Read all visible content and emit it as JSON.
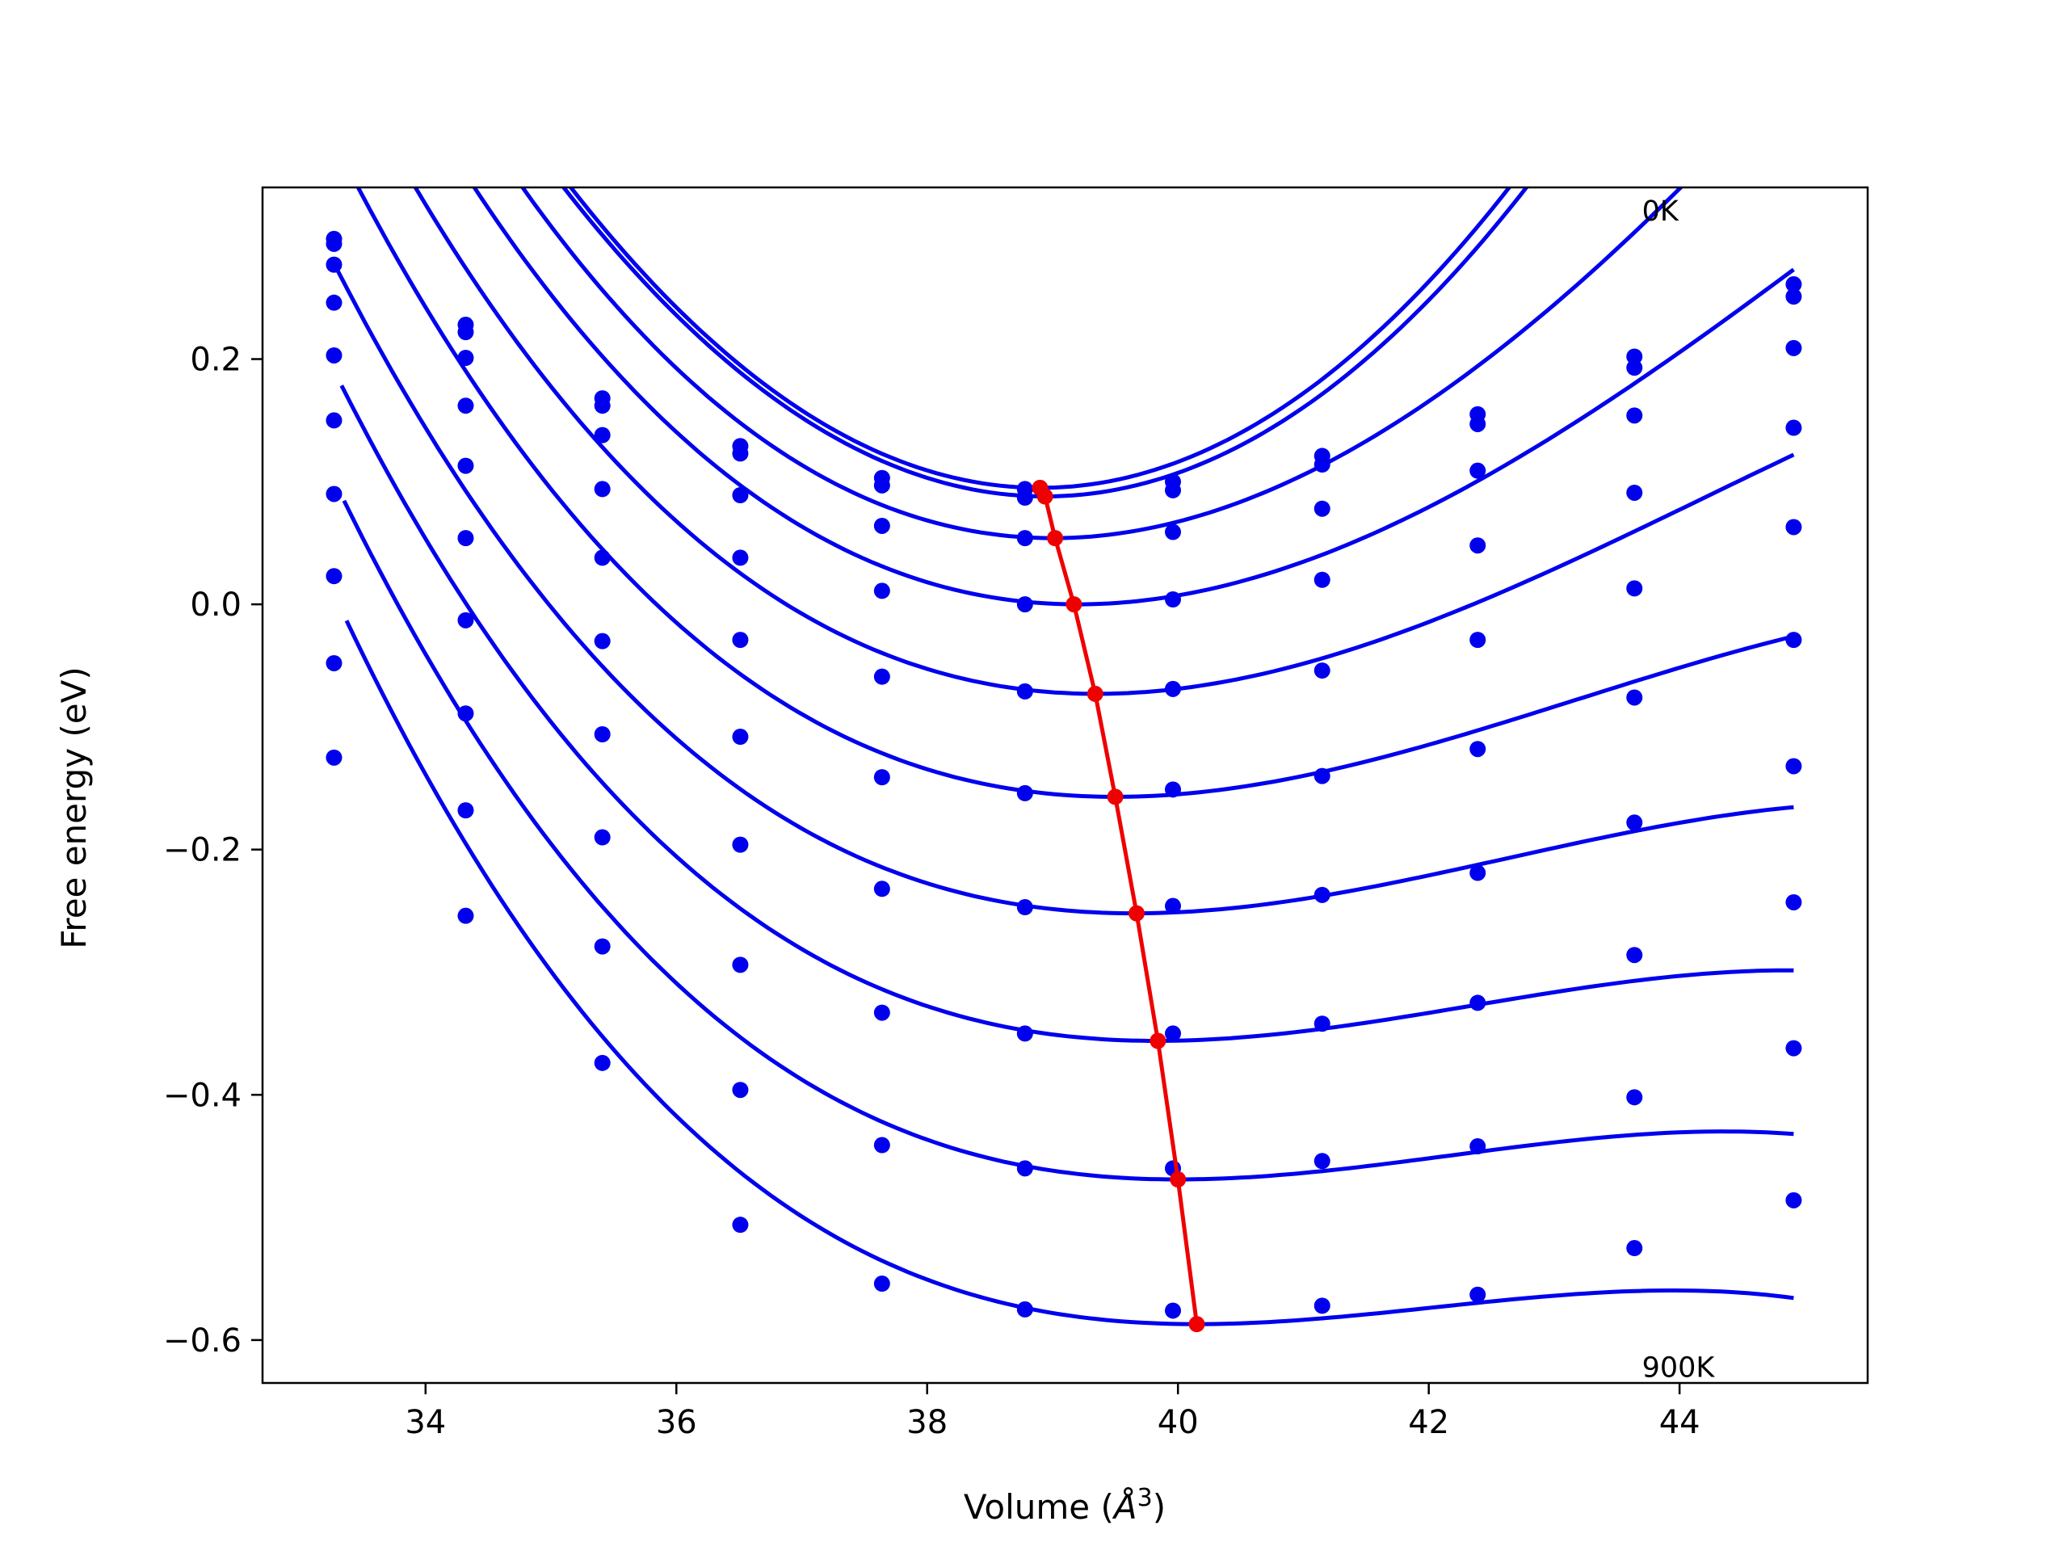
{
  "chart_data": {
    "type": "line",
    "xlabel": "Volume (",
    "xlabel_symbol": "Å",
    "xlabel_exp": "3",
    "xlabel_close": ")",
    "ylabel": "Free energy (eV)",
    "xlim": [
      32.7,
      45.5
    ],
    "ylim": [
      -0.635,
      0.34
    ],
    "x_ticks": [
      34,
      36,
      38,
      40,
      42,
      44
    ],
    "x_tick_labels": [
      "34",
      "36",
      "38",
      "40",
      "42",
      "44"
    ],
    "y_ticks": [
      0.2,
      0.0,
      -0.2,
      -0.4,
      -0.6
    ],
    "y_tick_labels": [
      "0.2",
      "0.0",
      "−0.2",
      "−0.4",
      "−0.6"
    ],
    "grid": false,
    "colors": {
      "series": "#0000ee",
      "minima": "#ee0000"
    },
    "annotations": [
      {
        "text": "0K",
        "x": 43.7,
        "y": 0.313
      },
      {
        "text": "900K",
        "x": 43.7,
        "y": -0.63
      }
    ],
    "volumes": [
      33.27,
      34.32,
      35.41,
      36.51,
      37.64,
      38.78,
      39.96,
      41.15,
      42.39,
      43.64,
      44.91
    ],
    "series": [
      {
        "points": [
          0.298,
          0.228,
          0.168,
          0.129,
          0.103,
          0.094,
          0.1,
          0.121,
          0.155,
          0.202,
          0.261
        ],
        "fit": {
          "vmin": 38.9,
          "fmin": 0.095,
          "a": 0.0175,
          "b": 0.0,
          "vstart": 33.27
        }
      },
      {
        "points": [
          0.294,
          0.222,
          0.162,
          0.123,
          0.097,
          0.087,
          0.093,
          0.114,
          0.147,
          0.193,
          0.251
        ],
        "fit": {
          "vmin": 38.94,
          "fmin": 0.088,
          "a": 0.0171,
          "b": 0.0,
          "vstart": 33.27
        }
      },
      {
        "points": [
          0.277,
          0.201,
          0.138,
          0.089,
          0.064,
          0.054,
          0.059,
          0.078,
          0.109,
          0.154,
          0.209
        ],
        "fit": {
          "vmin": 39.0,
          "fmin": 0.054,
          "a": 0.0139,
          "b": -0.0005,
          "vstart": 33.27
        }
      },
      {
        "points": [
          0.246,
          0.162,
          0.094,
          0.038,
          0.011,
          0.0,
          0.004,
          0.02,
          0.048,
          0.091,
          0.144
        ],
        "fit": {
          "vmin": 39.2,
          "fmin": 0.0,
          "a": 0.0118,
          "b": -0.0006,
          "vstart": 33.27
        }
      },
      {
        "points": [
          0.203,
          0.113,
          0.038,
          -0.029,
          -0.059,
          -0.071,
          -0.069,
          -0.054,
          -0.029,
          0.013,
          0.063
        ],
        "fit": {
          "vmin": 39.35,
          "fmin": -0.073,
          "a": 0.0102,
          "b": -0.0007,
          "vstart": 33.27
        }
      },
      {
        "points": [
          0.15,
          0.054,
          -0.03,
          -0.108,
          -0.141,
          -0.154,
          -0.151,
          -0.14,
          -0.118,
          -0.076,
          -0.029
        ],
        "fit": {
          "vmin": 39.5,
          "fmin": -0.157,
          "a": 0.0088,
          "b": -0.0008,
          "vstart": 33.27
        }
      },
      {
        "points": [
          0.09,
          -0.013,
          -0.106,
          -0.196,
          -0.232,
          -0.247,
          -0.246,
          -0.237,
          -0.219,
          -0.178,
          -0.132
        ],
        "fit": {
          "vmin": 39.65,
          "fmin": -0.252,
          "a": 0.0076,
          "b": -0.00085,
          "vstart": 33.3
        }
      },
      {
        "points": [
          0.023,
          -0.089,
          -0.19,
          -0.294,
          -0.333,
          -0.35,
          -0.35,
          -0.342,
          -0.325,
          -0.286,
          -0.243
        ],
        "fit": {
          "vmin": 39.83,
          "fmin": -0.356,
          "a": 0.0068,
          "b": -0.0009,
          "vstart": 33.33
        }
      },
      {
        "points": [
          -0.048,
          -0.168,
          -0.279,
          -0.396,
          -0.441,
          -0.46,
          -0.46,
          -0.454,
          -0.442,
          -0.402,
          -0.362
        ],
        "fit": {
          "vmin": 40.0,
          "fmin": -0.469,
          "a": 0.0062,
          "b": -0.00095,
          "vstart": 33.35
        }
      },
      {
        "points": [
          -0.125,
          -0.254,
          -0.374,
          -0.506,
          -0.554,
          -0.575,
          -0.576,
          -0.572,
          -0.563,
          -0.525,
          -0.486
        ],
        "fit": {
          "vmin": 40.15,
          "fmin": -0.587,
          "a": 0.0057,
          "b": -0.001,
          "vstart": 33.37
        }
      }
    ],
    "minima": {
      "x": [
        38.9,
        38.94,
        39.02,
        39.17,
        39.34,
        39.5,
        39.67,
        39.84,
        40.0,
        40.15
      ],
      "y": [
        0.095,
        0.088,
        0.054,
        0.0,
        -0.073,
        -0.157,
        -0.252,
        -0.356,
        -0.469,
        -0.587
      ]
    }
  }
}
